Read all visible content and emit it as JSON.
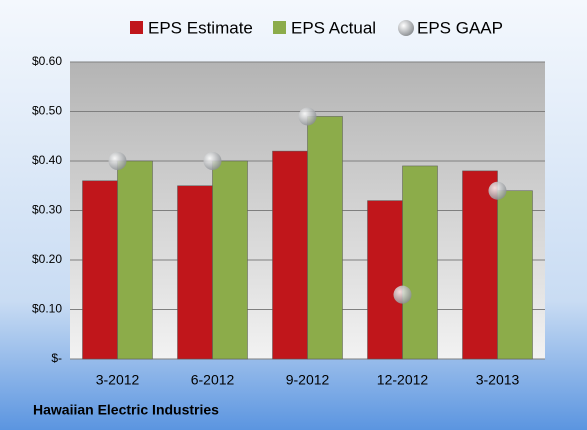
{
  "chart_data": {
    "type": "bar",
    "footer": "Hawaiian Electric Industries",
    "categories": [
      "3-2012",
      "6-2012",
      "9-2012",
      "12-2012",
      "3-2013"
    ],
    "series": [
      {
        "name": "EPS Estimate",
        "color": "#c0161b",
        "values": [
          0.36,
          0.35,
          0.42,
          0.32,
          0.38
        ]
      },
      {
        "name": "EPS Actual",
        "color": "#8cac4a",
        "values": [
          0.4,
          0.4,
          0.49,
          0.39,
          0.34
        ]
      },
      {
        "name": "EPS GAAP",
        "color": "#b4b8bc",
        "type": "scatter",
        "values": [
          0.4,
          0.4,
          0.49,
          0.13,
          0.34
        ]
      }
    ],
    "ylim": [
      0,
      0.6
    ],
    "yticks": [
      {
        "value": 0,
        "label": "$-"
      },
      {
        "value": 0.1,
        "label": "$0.10"
      },
      {
        "value": 0.2,
        "label": "$0.20"
      },
      {
        "value": 0.3,
        "label": "$0.30"
      },
      {
        "value": 0.4,
        "label": "$0.40"
      },
      {
        "value": 0.5,
        "label": "$0.50"
      },
      {
        "value": 0.6,
        "label": "$0.60"
      }
    ],
    "grid": true
  }
}
